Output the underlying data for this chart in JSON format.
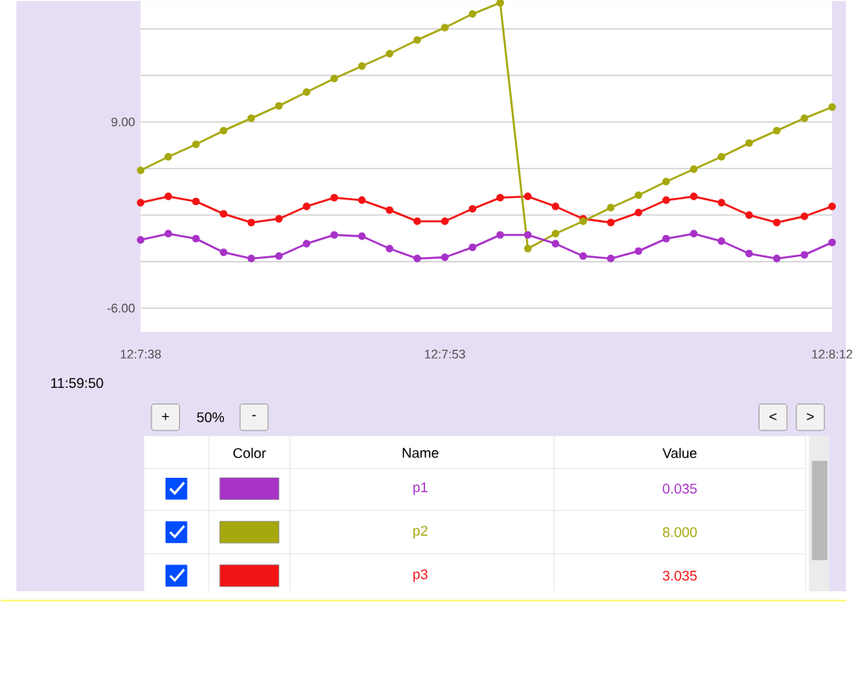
{
  "chart_data": {
    "type": "line",
    "categories": [
      "12:7:38",
      null,
      null,
      null,
      null,
      null,
      null,
      null,
      null,
      null,
      null,
      "12:7:53",
      null,
      null,
      null,
      null,
      null,
      null,
      null,
      null,
      null,
      null,
      null,
      null,
      null,
      "12:8:12"
    ],
    "series": [
      {
        "name": "p1",
        "color": "#a832c8",
        "values": [
          -0.5,
          0.0,
          -0.4,
          -1.5,
          -2.0,
          -1.8,
          -0.8,
          -0.1,
          -0.2,
          -1.2,
          -2.0,
          -1.9,
          -1.1,
          -0.1,
          -0.1,
          -0.8,
          -1.8,
          -2.0,
          -1.4,
          -0.4,
          0.0,
          -0.6,
          -1.6,
          -2.0,
          -1.7,
          -0.7
        ]
      },
      {
        "name": "p2",
        "color": "#a6a80e",
        "values": [
          5.1,
          6.2,
          7.2,
          8.3,
          9.3,
          10.3,
          11.4,
          12.5,
          13.5,
          14.5,
          15.6,
          16.6,
          17.7,
          18.6,
          -1.2,
          0.0,
          1.0,
          2.1,
          3.1,
          4.2,
          5.2,
          6.2,
          7.3,
          8.3,
          9.3,
          10.2
        ]
      },
      {
        "name": "p3",
        "color": "#f21414",
        "values": [
          2.5,
          3.0,
          2.6,
          1.6,
          0.9,
          1.2,
          2.2,
          2.9,
          2.7,
          1.9,
          1.0,
          1.0,
          2.0,
          2.9,
          3.0,
          2.2,
          1.2,
          0.9,
          1.7,
          2.7,
          3.0,
          2.5,
          1.5,
          0.9,
          1.4,
          2.2
        ]
      }
    ],
    "ylim": [
      -7.9,
      18.75
    ],
    "yticks": [
      {
        "value": -6,
        "label": "-6.00"
      },
      {
        "value": -2.25,
        "label": null
      },
      {
        "value": 1.5,
        "label": null
      },
      {
        "value": 5.25,
        "label": null
      },
      {
        "value": 9,
        "label": "9.00"
      },
      {
        "value": 12.75,
        "label": null
      },
      {
        "value": 16.5,
        "label": null
      }
    ],
    "grid": "y",
    "marker": "circle",
    "line_style": "solid",
    "legend": "bottom",
    "annotations": [
      "11:59:50",
      "+",
      "50%",
      "-",
      "<",
      ">",
      "Color",
      "Name",
      "Value",
      "0.035",
      "8.000",
      "3.035"
    ]
  }
}
